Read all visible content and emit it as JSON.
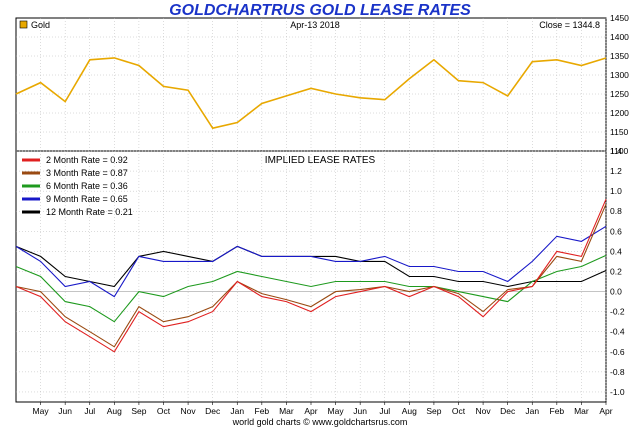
{
  "title": "GOLDCHARTRUS GOLD LEASE RATES",
  "footer": "world gold charts © www.goldchartsrus.com",
  "colors": {
    "title": "#1a33c8",
    "gold": "#e8a800",
    "background": "#ffffff",
    "grid": "#b8b8b8"
  },
  "chart_data": [
    {
      "type": "line",
      "date_label": "Apr-13  2018",
      "close_label": "Close = 1344.8",
      "legend": [
        "Gold"
      ],
      "ylim": [
        1100,
        1450
      ],
      "yticks": [
        "1100",
        "1150",
        "1200",
        "1250",
        "1300",
        "1350",
        "1400",
        "1450"
      ],
      "x": [
        "2016-04",
        "2016-05",
        "2016-06",
        "2016-07",
        "2016-08",
        "2016-09",
        "2016-10",
        "2016-11",
        "2016-12",
        "2017-01",
        "2017-02",
        "2017-03",
        "2017-04",
        "2017-05",
        "2017-06",
        "2017-07",
        "2017-08",
        "2017-09",
        "2017-10",
        "2017-11",
        "2017-12",
        "2018-01",
        "2018-02",
        "2018-03",
        "2018-04"
      ],
      "series": [
        {
          "name": "Gold",
          "color": "#e8a800",
          "values": [
            1250,
            1280,
            1230,
            1340,
            1345,
            1325,
            1270,
            1260,
            1160,
            1175,
            1225,
            1245,
            1265,
            1250,
            1240,
            1235,
            1290,
            1340,
            1285,
            1280,
            1245,
            1335,
            1340,
            1325,
            1344.8
          ]
        }
      ]
    },
    {
      "type": "line",
      "title": "IMPLIED LEASE RATES",
      "ylim": [
        -1.1,
        1.4
      ],
      "yticks": [
        "-1.0",
        "-0.8",
        "-0.6",
        "-0.4",
        "-0.2",
        "0.0",
        "0.2",
        "0.4",
        "0.6",
        "0.8",
        "1.0",
        "1.2",
        "1.4"
      ],
      "xticks": [
        "May",
        "Jun",
        "Jul",
        "Aug",
        "Sep",
        "Oct",
        "Nov",
        "Dec",
        "Jan",
        "Feb",
        "Mar",
        "Apr",
        "May",
        "Jun",
        "Jul",
        "Aug",
        "Sep",
        "Oct",
        "Nov",
        "Dec",
        "Jan",
        "Feb",
        "Mar",
        "Apr"
      ],
      "x": [
        "2016-04",
        "2016-05",
        "2016-06",
        "2016-07",
        "2016-08",
        "2016-09",
        "2016-10",
        "2016-11",
        "2016-12",
        "2017-01",
        "2017-02",
        "2017-03",
        "2017-04",
        "2017-05",
        "2017-06",
        "2017-07",
        "2017-08",
        "2017-09",
        "2017-10",
        "2017-11",
        "2017-12",
        "2018-01",
        "2018-02",
        "2018-03",
        "2018-04"
      ],
      "series": [
        {
          "name": "2 Month Rate  = 0.92",
          "color": "#e02020",
          "values": [
            0.05,
            -0.05,
            -0.3,
            -0.45,
            -0.6,
            -0.2,
            -0.35,
            -0.3,
            -0.2,
            0.1,
            -0.05,
            -0.1,
            -0.2,
            -0.05,
            0.0,
            0.05,
            -0.05,
            0.05,
            -0.05,
            -0.25,
            0.0,
            0.05,
            0.4,
            0.35,
            0.92
          ]
        },
        {
          "name": "3 Month Rate  = 0.87",
          "color": "#9a4a12",
          "values": [
            0.05,
            0.0,
            -0.25,
            -0.4,
            -0.55,
            -0.15,
            -0.3,
            -0.25,
            -0.15,
            0.1,
            -0.02,
            -0.08,
            -0.15,
            0.0,
            0.02,
            0.05,
            0.0,
            0.05,
            -0.02,
            -0.2,
            0.02,
            0.05,
            0.35,
            0.3,
            0.87
          ]
        },
        {
          "name": "6 Month Rate  = 0.36",
          "color": "#1e9a1e",
          "values": [
            0.25,
            0.15,
            -0.1,
            -0.15,
            -0.3,
            0.0,
            -0.05,
            0.05,
            0.1,
            0.2,
            0.15,
            0.1,
            0.05,
            0.1,
            0.1,
            0.1,
            0.05,
            0.05,
            0.0,
            -0.05,
            -0.1,
            0.1,
            0.2,
            0.25,
            0.36
          ]
        },
        {
          "name": "9 Month Rate  = 0.65",
          "color": "#1818c8",
          "values": [
            0.45,
            0.3,
            0.05,
            0.1,
            -0.05,
            0.35,
            0.3,
            0.3,
            0.3,
            0.45,
            0.35,
            0.35,
            0.35,
            0.3,
            0.3,
            0.35,
            0.25,
            0.25,
            0.2,
            0.2,
            0.1,
            0.3,
            0.55,
            0.5,
            0.65
          ]
        },
        {
          "name": "12 Month Rate  = 0.21",
          "color": "#000000",
          "values": [
            0.45,
            0.35,
            0.15,
            0.1,
            0.05,
            0.35,
            0.4,
            0.35,
            0.3,
            0.45,
            0.35,
            0.35,
            0.35,
            0.35,
            0.3,
            0.3,
            0.15,
            0.15,
            0.1,
            0.1,
            0.05,
            0.1,
            0.1,
            0.1,
            0.21
          ]
        }
      ]
    }
  ]
}
